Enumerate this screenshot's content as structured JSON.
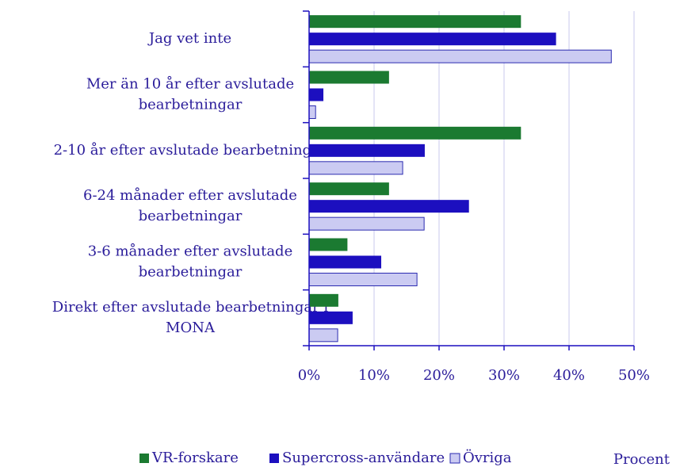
{
  "chart_data": {
    "type": "hbar",
    "categories": [
      "Jag vet inte",
      "Mer än 10 år efter avslutade\nbearbetningar",
      "2-10 år efter avslutade bearbetningar",
      "6-24 månader efter avslutade\nbearbetningar",
      "3-6 månader efter avslutade\nbearbetningar",
      "Direkt efter avslutade bearbetningar i\nMONA"
    ],
    "series": [
      {
        "name": "VR-forskare",
        "color": "#1b7a31",
        "values": [
          32.6,
          12.3,
          32.6,
          12.3,
          5.9,
          4.5
        ]
      },
      {
        "name": "Supercross-användare",
        "color": "#1c0fbf",
        "values": [
          38.0,
          2.2,
          17.8,
          24.6,
          11.1,
          6.7
        ]
      },
      {
        "name": "Övriga",
        "color": "#cbcbf2",
        "values": [
          46.5,
          1.0,
          14.4,
          17.7,
          16.6,
          4.4
        ]
      }
    ],
    "x_label": "Procent",
    "xlim": [
      0,
      50
    ],
    "xticks": [
      {
        "value": 0,
        "label": "0%"
      },
      {
        "value": 10,
        "label": "10%"
      },
      {
        "value": 20,
        "label": "20%"
      },
      {
        "value": 30,
        "label": "30%"
      },
      {
        "value": 40,
        "label": "40%"
      },
      {
        "value": 50,
        "label": "50%"
      }
    ],
    "grid": true
  }
}
